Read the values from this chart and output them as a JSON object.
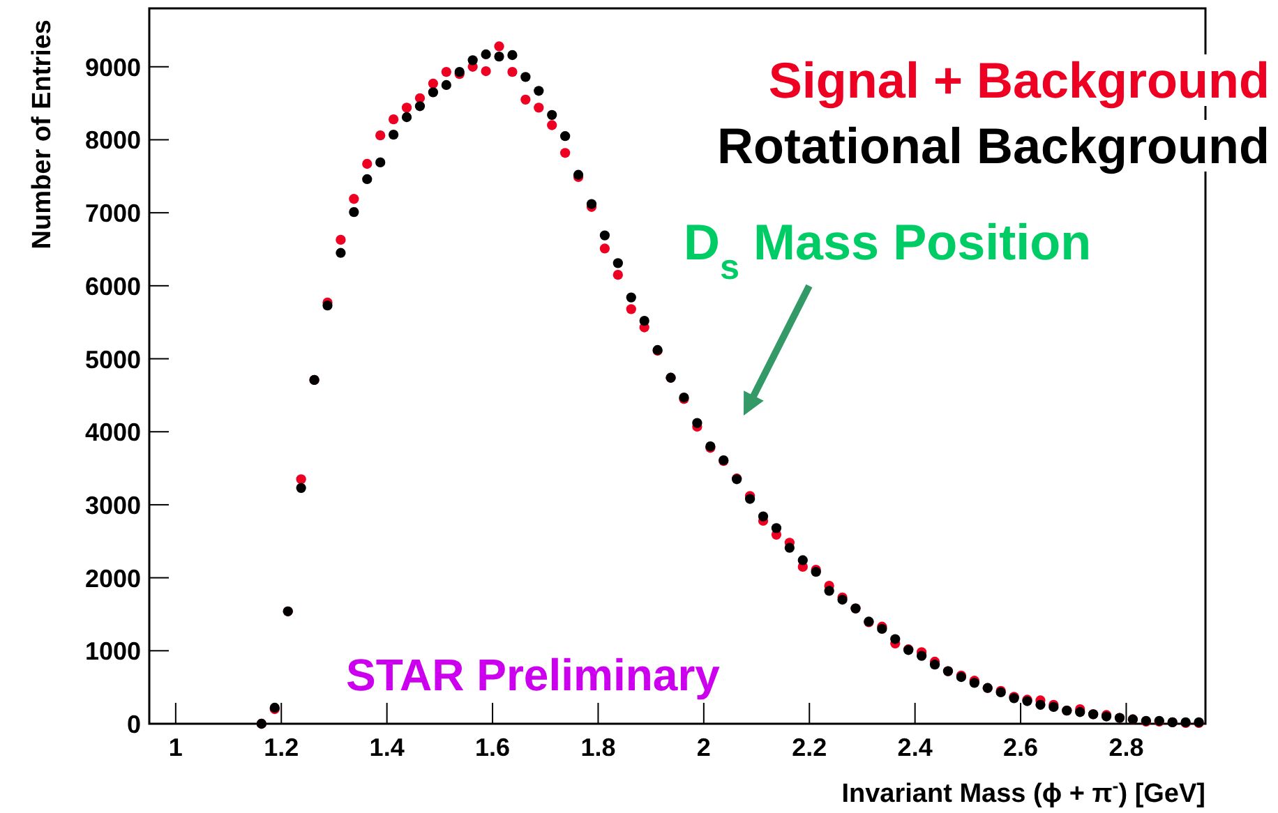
{
  "chart_data": {
    "type": "scatter",
    "xlabel": "Invariant Mass (ϕ + π$^{-}$) [GeV]",
    "ylabel": "Number of Entries",
    "marker": "circle",
    "legend": "top right",
    "grid": false,
    "x": [
      1.1625,
      1.1875,
      1.2125,
      1.2375,
      1.2625,
      1.2875,
      1.3125,
      1.3375,
      1.3625,
      1.3875,
      1.4125,
      1.4375,
      1.4625,
      1.4875,
      1.5125,
      1.5375,
      1.5625,
      1.5875,
      1.6125,
      1.6375,
      1.6625,
      1.6875,
      1.7125,
      1.7375,
      1.7625,
      1.7875,
      1.8125,
      1.8375,
      1.8625,
      1.8875,
      1.9125,
      1.9375,
      1.9625,
      1.9875,
      2.0125,
      2.0375,
      2.0625,
      2.0875,
      2.1125,
      2.1375,
      2.1625,
      2.1875,
      2.2125,
      2.2375,
      2.2625,
      2.2875,
      2.3125,
      2.3375,
      2.3625,
      2.3875,
      2.4125,
      2.4375,
      2.4625,
      2.4875,
      2.5125,
      2.5375,
      2.5625,
      2.5875,
      2.6125,
      2.6375,
      2.6625,
      2.6875,
      2.7125,
      2.7375,
      2.7625,
      2.7875,
      2.8125,
      2.8375,
      2.8625,
      2.8875,
      2.9125,
      2.9375
    ],
    "series": [
      {
        "name": "Signal + Background",
        "color": "#ee0022",
        "values": [
          0,
          200,
          1540,
          3350,
          4710,
          5770,
          6630,
          7190,
          7670,
          8060,
          8280,
          8440,
          8570,
          8770,
          8930,
          8900,
          9000,
          8940,
          9280,
          8930,
          8550,
          8440,
          8200,
          7820,
          7490,
          7080,
          6510,
          6150,
          5680,
          5430,
          5110,
          4740,
          4450,
          4070,
          3780,
          3600,
          3360,
          3120,
          2780,
          2590,
          2480,
          2150,
          2110,
          1890,
          1730,
          1580,
          1390,
          1330,
          1100,
          1020,
          980,
          850,
          720,
          660,
          590,
          490,
          450,
          370,
          330,
          320,
          260,
          180,
          200,
          130,
          120,
          80,
          60,
          30,
          30,
          20,
          10,
          10
        ]
      },
      {
        "name": "Rotational Background",
        "color": "#000000",
        "values": [
          0,
          220,
          1540,
          3230,
          4710,
          5730,
          6450,
          7010,
          7460,
          7690,
          8070,
          8310,
          8460,
          8650,
          8750,
          8930,
          9090,
          9170,
          9140,
          9160,
          8860,
          8670,
          8340,
          8050,
          7520,
          7120,
          6690,
          6310,
          5840,
          5520,
          5120,
          4740,
          4470,
          4120,
          3800,
          3610,
          3350,
          3080,
          2840,
          2680,
          2410,
          2240,
          2080,
          1820,
          1700,
          1580,
          1400,
          1300,
          1160,
          1010,
          930,
          810,
          720,
          640,
          560,
          490,
          430,
          350,
          310,
          260,
          230,
          180,
          160,
          130,
          100,
          80,
          60,
          40,
          40,
          20,
          20,
          20
        ]
      }
    ],
    "xlim": [
      0.95,
      2.95
    ],
    "xticks": [
      1,
      1.2,
      1.4,
      1.6,
      1.8,
      2,
      2.2,
      2.4,
      2.6,
      2.8
    ],
    "ylim": [
      0,
      9800
    ],
    "yticks": [
      0,
      1000,
      2000,
      3000,
      4000,
      5000,
      6000,
      7000,
      8000,
      9000
    ],
    "annotations": [
      "D$_{s}$ Mass Position",
      "STAR Preliminary"
    ]
  }
}
